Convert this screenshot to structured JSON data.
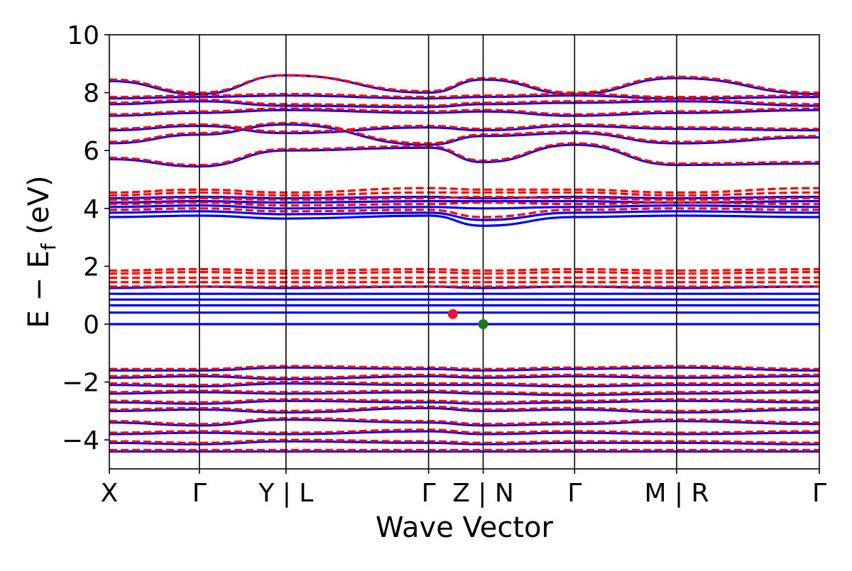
{
  "chart_data": {
    "type": "line",
    "title": "",
    "xlabel": "Wave Vector",
    "ylabel_parts": {
      "main": "E − E",
      "sub": "f",
      "unit": " (eV)"
    },
    "ylim": [
      -5,
      10
    ],
    "yticks": [
      -4,
      -2,
      0,
      2,
      4,
      6,
      8,
      10
    ],
    "ytick_labels": [
      "−4",
      "−2",
      "0",
      "2",
      "4",
      "6",
      "8",
      "10"
    ],
    "xticks": [
      {
        "x": 0.0,
        "label": "X"
      },
      {
        "x": 0.1268,
        "label": "Γ"
      },
      {
        "x": 0.2488,
        "label": "Y | L"
      },
      {
        "x": 0.4496,
        "label": "Γ"
      },
      {
        "x": 0.5265,
        "label": "Z | N"
      },
      {
        "x": 0.6553,
        "label": "Γ"
      },
      {
        "x": 0.799,
        "label": "M | R"
      },
      {
        "x": 1.0,
        "label": "Γ"
      }
    ],
    "grid": false,
    "legend": "none",
    "series_styles": [
      {
        "style": "solid",
        "color": "#0000ff"
      },
      {
        "style": "dashed",
        "color": "#ff0000"
      }
    ],
    "bands_blue": [
      [
        -4.4,
        -4.4,
        -4.4,
        -4.4,
        -4.4,
        -4.4,
        -4.4,
        -4.4
      ],
      [
        -4.1,
        -4.15,
        -4.05,
        -4.1,
        -4.15,
        -4.1,
        -4.1,
        -4.15
      ],
      [
        -3.8,
        -3.75,
        -3.8,
        -3.7,
        -3.8,
        -3.75,
        -3.8,
        -3.75
      ],
      [
        -3.4,
        -3.5,
        -3.3,
        -3.4,
        -3.5,
        -3.45,
        -3.35,
        -3.45
      ],
      [
        -3.0,
        -2.95,
        -3.05,
        -2.9,
        -3.0,
        -2.95,
        -3.05,
        -2.95
      ],
      [
        -2.7,
        -2.75,
        -2.65,
        -2.7,
        -2.75,
        -2.7,
        -2.65,
        -2.7
      ],
      [
        -2.4,
        -2.35,
        -2.4,
        -2.35,
        -2.4,
        -2.45,
        -2.4,
        -2.35
      ],
      [
        -2.1,
        -2.15,
        -2.05,
        -2.1,
        -2.1,
        -2.15,
        -2.1,
        -2.1
      ],
      [
        -1.85,
        -1.8,
        -1.9,
        -1.8,
        -1.85,
        -1.8,
        -1.85,
        -1.8
      ],
      [
        -1.6,
        -1.6,
        -1.5,
        -1.55,
        -1.6,
        -1.55,
        -1.5,
        -1.6
      ],
      [
        0.0,
        0.0,
        0.0,
        0.0,
        0.0,
        0.0,
        0.0,
        0.0
      ],
      [
        0.4,
        0.4,
        0.4,
        0.4,
        0.4,
        0.4,
        0.4,
        0.4
      ],
      [
        0.65,
        0.65,
        0.65,
        0.65,
        0.65,
        0.65,
        0.65,
        0.65
      ],
      [
        0.85,
        0.85,
        0.85,
        0.85,
        0.85,
        0.85,
        0.85,
        0.85
      ],
      [
        1.05,
        1.05,
        1.05,
        1.05,
        1.05,
        1.05,
        1.05,
        1.05
      ],
      [
        1.25,
        1.3,
        1.25,
        1.3,
        1.25,
        1.3,
        1.25,
        1.3
      ],
      [
        3.7,
        3.75,
        3.65,
        3.75,
        3.4,
        3.7,
        3.75,
        3.7
      ],
      [
        3.85,
        3.9,
        3.8,
        3.85,
        3.6,
        3.85,
        3.9,
        3.85
      ],
      [
        4.05,
        4.1,
        4.0,
        4.05,
        4.0,
        4.05,
        4.1,
        4.05
      ],
      [
        4.2,
        4.25,
        4.2,
        4.25,
        4.25,
        4.25,
        4.2,
        4.25
      ],
      [
        4.35,
        4.4,
        4.35,
        4.4,
        4.35,
        4.4,
        4.35,
        4.4
      ],
      [
        5.7,
        5.45,
        6.0,
        6.1,
        5.6,
        6.2,
        5.5,
        5.55
      ],
      [
        6.25,
        6.55,
        6.9,
        6.2,
        6.5,
        6.6,
        6.25,
        6.45
      ],
      [
        6.7,
        6.85,
        6.6,
        6.8,
        6.7,
        6.85,
        6.75,
        6.7
      ],
      [
        7.2,
        7.3,
        7.4,
        7.3,
        7.35,
        7.2,
        7.3,
        7.4
      ],
      [
        7.6,
        7.7,
        7.55,
        7.5,
        7.6,
        7.65,
        7.7,
        7.55
      ],
      [
        7.8,
        7.85,
        7.9,
        7.8,
        7.85,
        7.9,
        7.8,
        7.85
      ],
      [
        8.4,
        7.95,
        8.6,
        8.0,
        8.45,
        7.95,
        8.5,
        7.95
      ]
    ],
    "bands_red": [
      [
        -4.35,
        -4.35,
        -4.35,
        -4.35,
        -4.35,
        -4.35,
        -4.35,
        -4.35
      ],
      [
        -4.05,
        -4.1,
        -4.0,
        -4.05,
        -4.1,
        -4.05,
        -4.05,
        -4.1
      ],
      [
        -3.75,
        -3.7,
        -3.75,
        -3.65,
        -3.75,
        -3.7,
        -3.75,
        -3.7
      ],
      [
        -3.35,
        -3.45,
        -3.25,
        -3.35,
        -3.45,
        -3.4,
        -3.3,
        -3.4
      ],
      [
        -2.95,
        -2.9,
        -3.0,
        -2.85,
        -2.95,
        -2.9,
        -3.0,
        -2.9
      ],
      [
        -2.65,
        -2.7,
        -2.6,
        -2.65,
        -2.7,
        -2.65,
        -2.6,
        -2.65
      ],
      [
        -2.35,
        -2.3,
        -2.35,
        -2.3,
        -2.35,
        -2.4,
        -2.35,
        -2.3
      ],
      [
        -2.05,
        -2.1,
        -2.0,
        -2.05,
        -2.05,
        -2.1,
        -2.05,
        -2.05
      ],
      [
        -1.8,
        -1.75,
        -1.85,
        -1.75,
        -1.8,
        -1.75,
        -1.8,
        -1.75
      ],
      [
        -1.55,
        -1.55,
        -1.45,
        -1.5,
        -1.55,
        -1.5,
        -1.45,
        -1.55
      ],
      [
        1.3,
        1.3,
        1.3,
        1.3,
        1.3,
        1.3,
        1.3,
        1.3
      ],
      [
        1.45,
        1.45,
        1.45,
        1.45,
        1.45,
        1.45,
        1.45,
        1.45
      ],
      [
        1.6,
        1.6,
        1.6,
        1.6,
        1.6,
        1.6,
        1.6,
        1.6
      ],
      [
        1.75,
        1.8,
        1.75,
        1.8,
        1.75,
        1.8,
        1.75,
        1.8
      ],
      [
        1.85,
        1.9,
        1.85,
        1.9,
        1.85,
        1.9,
        1.85,
        1.9
      ],
      [
        3.95,
        4.0,
        3.9,
        3.95,
        3.7,
        3.95,
        4.0,
        3.95
      ],
      [
        4.15,
        4.2,
        4.1,
        4.15,
        4.2,
        4.15,
        4.2,
        4.15
      ],
      [
        4.3,
        4.35,
        4.3,
        4.35,
        4.4,
        4.35,
        4.3,
        4.35
      ],
      [
        4.45,
        4.55,
        4.45,
        4.55,
        4.55,
        4.55,
        4.45,
        4.55
      ],
      [
        4.55,
        4.65,
        4.55,
        4.7,
        4.65,
        4.65,
        4.55,
        4.7
      ],
      [
        5.75,
        5.5,
        6.05,
        6.15,
        5.65,
        6.25,
        5.55,
        5.6
      ],
      [
        6.3,
        6.6,
        6.95,
        6.25,
        6.55,
        6.65,
        6.3,
        6.5
      ],
      [
        6.75,
        6.9,
        6.65,
        6.85,
        6.75,
        6.9,
        6.8,
        6.75
      ],
      [
        7.25,
        7.35,
        7.45,
        7.35,
        7.4,
        7.25,
        7.35,
        7.45
      ],
      [
        7.65,
        7.75,
        7.6,
        7.55,
        7.65,
        7.7,
        7.75,
        7.6
      ],
      [
        7.85,
        7.9,
        7.95,
        7.85,
        7.9,
        7.95,
        7.85,
        7.9
      ],
      [
        8.45,
        8.0,
        8.6,
        8.05,
        8.5,
        8.0,
        8.55,
        8.0
      ]
    ],
    "markers": [
      {
        "name": "cbm-marker",
        "x": 0.4838,
        "y": 0.35,
        "color": "#e8182d"
      },
      {
        "name": "vbm-marker",
        "x": 0.5265,
        "y": 0.0,
        "color": "#1a7a1a"
      }
    ]
  }
}
